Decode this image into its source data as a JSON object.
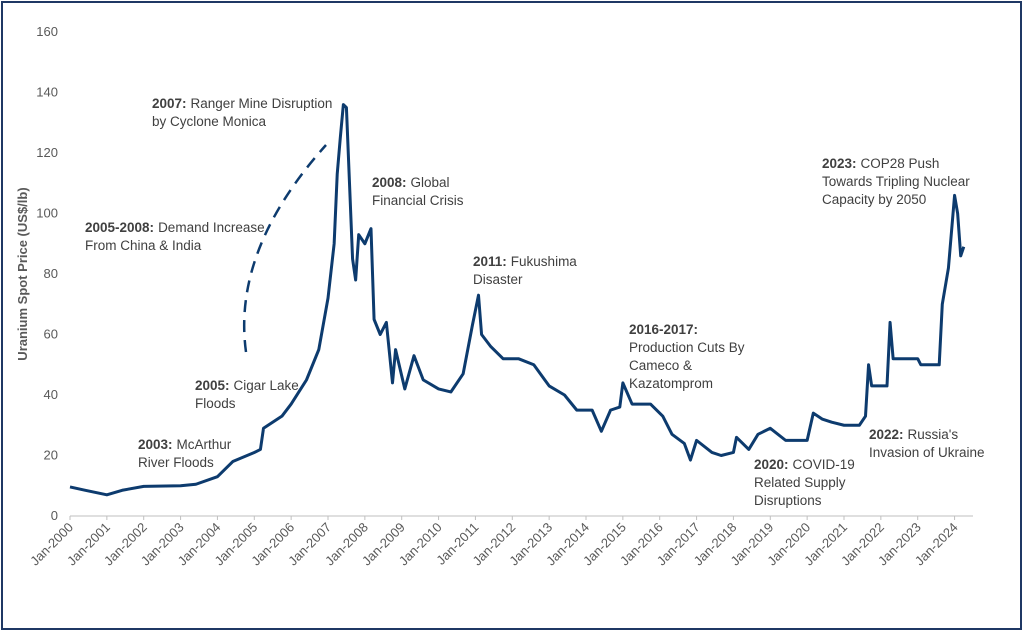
{
  "chart_data": {
    "type": "line",
    "y_label": "Uranium Spot Price (US$/lb)",
    "ylim": [
      0,
      160
    ],
    "yticks": [
      0,
      20,
      40,
      60,
      80,
      100,
      120,
      140,
      160
    ],
    "xlim": [
      "2000-01",
      "2024-07"
    ],
    "xticks": [
      {
        "value": "2000-01",
        "label": "Jan-2000"
      },
      {
        "value": "2001-01",
        "label": "Jan-2001"
      },
      {
        "value": "2002-01",
        "label": "Jan-2002"
      },
      {
        "value": "2003-01",
        "label": "Jan-2003"
      },
      {
        "value": "2004-01",
        "label": "Jan-2004"
      },
      {
        "value": "2005-01",
        "label": "Jan-2005"
      },
      {
        "value": "2006-01",
        "label": "Jan-2006"
      },
      {
        "value": "2007-01",
        "label": "Jan-2007"
      },
      {
        "value": "2008-01",
        "label": "Jan-2008"
      },
      {
        "value": "2009-01",
        "label": "Jan-2009"
      },
      {
        "value": "2010-01",
        "label": "Jan-2010"
      },
      {
        "value": "2011-01",
        "label": "Jan-2011"
      },
      {
        "value": "2012-01",
        "label": "Jan-2012"
      },
      {
        "value": "2013-01",
        "label": "Jan-2013"
      },
      {
        "value": "2014-01",
        "label": "Jan-2014"
      },
      {
        "value": "2015-01",
        "label": "Jan-2015"
      },
      {
        "value": "2016-01",
        "label": "Jan-2016"
      },
      {
        "value": "2017-01",
        "label": "Jan-2017"
      },
      {
        "value": "2018-01",
        "label": "Jan-2018"
      },
      {
        "value": "2019-01",
        "label": "Jan-2019"
      },
      {
        "value": "2020-01",
        "label": "Jan-2020"
      },
      {
        "value": "2021-01",
        "label": "Jan-2021"
      },
      {
        "value": "2022-01",
        "label": "Jan-2022"
      },
      {
        "value": "2023-01",
        "label": "Jan-2023"
      },
      {
        "value": "2024-01",
        "label": "Jan-2024"
      }
    ],
    "series": [
      {
        "name": "Uranium spot price",
        "color": "#0d3b6e",
        "x": [
          "2000-01",
          "2000-06",
          "2001-01",
          "2001-06",
          "2002-01",
          "2003-01",
          "2003-06",
          "2004-01",
          "2004-06",
          "2005-01",
          "2005-03",
          "2005-04",
          "2005-10",
          "2006-01",
          "2006-06",
          "2006-10",
          "2007-01",
          "2007-03",
          "2007-04",
          "2007-05",
          "2007-06",
          "2007-07",
          "2007-08",
          "2007-09",
          "2007-10",
          "2007-11",
          "2008-01",
          "2008-03",
          "2008-04",
          "2008-06",
          "2008-08",
          "2008-10",
          "2008-11",
          "2009-02",
          "2009-05",
          "2009-08",
          "2010-01",
          "2010-05",
          "2010-09",
          "2010-12",
          "2011-02",
          "2011-03",
          "2011-06",
          "2011-10",
          "2012-03",
          "2012-08",
          "2013-01",
          "2013-06",
          "2013-10",
          "2014-03",
          "2014-06",
          "2014-09",
          "2014-12",
          "2015-01",
          "2015-04",
          "2015-10",
          "2016-02",
          "2016-05",
          "2016-09",
          "2016-11",
          "2017-01",
          "2017-06",
          "2017-09",
          "2018-01",
          "2018-02",
          "2018-06",
          "2018-09",
          "2019-01",
          "2019-06",
          "2020-01",
          "2020-03",
          "2020-06",
          "2020-09",
          "2021-01",
          "2021-06",
          "2021-08",
          "2021-09",
          "2021-10",
          "2022-03",
          "2022-04",
          "2022-05",
          "2023-01",
          "2023-02",
          "2023-08",
          "2023-09",
          "2023-11",
          "2024-01",
          "2024-02",
          "2024-03",
          "2024-04"
        ],
        "values": [
          9.6,
          8.5,
          7,
          8.5,
          9.8,
          10,
          10.5,
          13,
          18,
          21,
          22,
          29,
          33,
          37,
          45,
          55,
          72,
          90,
          113,
          125,
          136,
          135,
          110,
          85,
          78,
          93,
          90,
          95,
          65,
          60,
          64,
          44,
          55,
          42,
          53,
          45,
          42,
          41,
          47,
          63,
          73,
          60,
          56,
          52,
          52,
          50,
          43,
          40,
          35,
          35,
          28,
          35,
          36,
          44,
          37,
          37,
          33,
          27,
          24,
          18.5,
          25,
          21,
          20,
          21,
          26,
          22,
          27,
          29,
          25,
          25,
          34,
          32,
          31,
          30,
          30,
          33,
          50,
          43,
          43,
          64,
          52,
          52,
          50,
          50,
          70,
          82,
          106,
          100,
          86,
          89
        ]
      }
    ],
    "annotations": [
      {
        "label": "2007:",
        "lines": [
          "Ranger Mine Disruption",
          "by Cyclone Monica"
        ]
      },
      {
        "label": "2008:",
        "lines": [
          "Global",
          "Financial Crisis"
        ]
      },
      {
        "label": "2005-2008:",
        "lines": [
          "Demand Increase",
          "From China & India"
        ]
      },
      {
        "label": "2011:",
        "lines": [
          "Fukushima",
          "Disaster"
        ]
      },
      {
        "label": "2016-2017:",
        "lines": [
          "",
          "Production Cuts By",
          "Cameco &",
          "Kazatomprom"
        ]
      },
      {
        "label": "2023:",
        "lines": [
          "COP28 Push",
          "Towards Tripling Nuclear",
          "Capacity by 2050"
        ]
      },
      {
        "label": "2005:",
        "lines": [
          "Cigar Lake",
          "Floods"
        ]
      },
      {
        "label": "2003:",
        "lines": [
          "McArthur",
          "River Floods"
        ]
      },
      {
        "label": "2020:",
        "lines": [
          "COVID-19",
          "Related Supply",
          "Disruptions"
        ]
      },
      {
        "label": "2022:",
        "lines": [
          "Russia's",
          "Invasion of Ukraine"
        ]
      }
    ]
  }
}
